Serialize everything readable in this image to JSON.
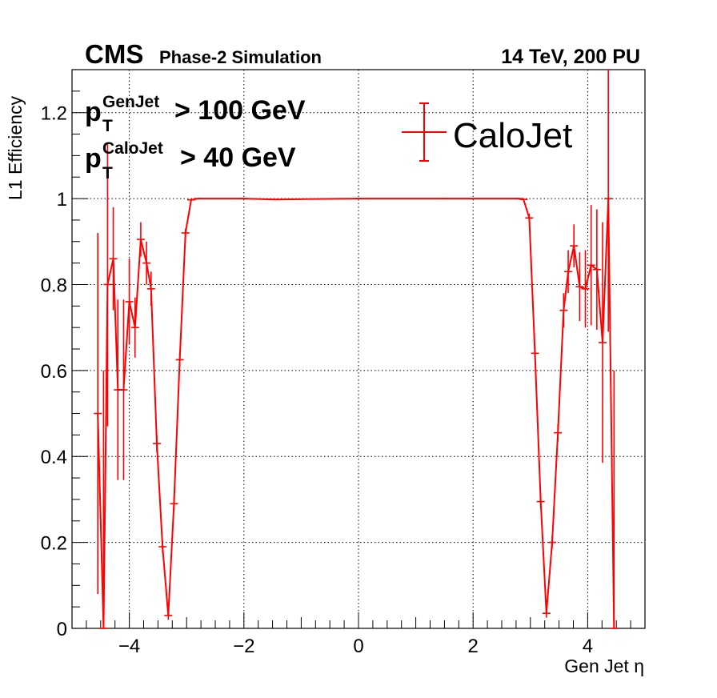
{
  "header": {
    "experiment": "CMS",
    "subtitle": "Phase-2 Simulation",
    "conditions": "14 TeV, 200 PU"
  },
  "cuts": {
    "cut1": {
      "base": "p",
      "sub": "T",
      "sup": "GenJet",
      "rest": "> 100 GeV"
    },
    "cut2": {
      "base": "p",
      "sub": "T",
      "sup": "CaloJet",
      "rest": "> 40 GeV"
    }
  },
  "chart_data": {
    "type": "line",
    "xlabel": "Gen Jet η",
    "ylabel": "L1 Efficiency",
    "xlim": [
      -5,
      5
    ],
    "ylim": [
      0,
      1.3
    ],
    "xticks": [
      -4,
      -2,
      0,
      2,
      4
    ],
    "xtick_labels": [
      "−4",
      "−2",
      "0",
      "2",
      "4"
    ],
    "yticks": [
      0,
      0.2,
      0.4,
      0.6,
      0.8,
      1,
      1.2
    ],
    "ytick_labels": [
      "0",
      "0.2",
      "0.4",
      "0.6",
      "0.8",
      "1",
      "1.2"
    ],
    "grid": true,
    "legend_position": "top-right",
    "series": [
      {
        "name": "CaloJet",
        "color": "#ff0000",
        "points": [
          {
            "x": -4.55,
            "y": 0.5,
            "err": 0.42
          },
          {
            "x": -4.45,
            "y": 0.0,
            "err": 0.6
          },
          {
            "x": -4.38,
            "y": 0.8,
            "err": 0.33
          },
          {
            "x": -4.28,
            "y": 0.86,
            "err": 0.12
          },
          {
            "x": -4.2,
            "y": 0.555,
            "err": 0.21
          },
          {
            "x": -4.1,
            "y": 0.555,
            "err": 0.21
          },
          {
            "x": -4.0,
            "y": 0.76,
            "err": 0.1
          },
          {
            "x": -3.9,
            "y": 0.7,
            "err": 0.07
          },
          {
            "x": -3.8,
            "y": 0.905,
            "err": 0.04
          },
          {
            "x": -3.7,
            "y": 0.85,
            "err": 0.05
          },
          {
            "x": -3.62,
            "y": 0.79,
            "err": 0.04
          },
          {
            "x": -3.52,
            "y": 0.43,
            "err": 0.02
          },
          {
            "x": -3.42,
            "y": 0.19,
            "err": 0.015
          },
          {
            "x": -3.32,
            "y": 0.03,
            "err": 0.01
          },
          {
            "x": -3.22,
            "y": 0.29,
            "err": 0.015
          },
          {
            "x": -3.12,
            "y": 0.625,
            "err": 0.015
          },
          {
            "x": -3.02,
            "y": 0.92,
            "err": 0.01
          },
          {
            "x": -2.92,
            "y": 0.997,
            "err": 0.003
          },
          {
            "x": -2.8,
            "y": 1.0,
            "err": 0.0
          },
          {
            "x": -2.0,
            "y": 1.0,
            "err": 0.0
          },
          {
            "x": -1.45,
            "y": 0.998,
            "err": 0.0
          },
          {
            "x": 0.0,
            "y": 1.0,
            "err": 0.0
          },
          {
            "x": 1.5,
            "y": 1.0,
            "err": 0.0
          },
          {
            "x": 2.8,
            "y": 1.0,
            "err": 0.0
          },
          {
            "x": 2.88,
            "y": 0.998,
            "err": 0.003
          },
          {
            "x": 2.98,
            "y": 0.955,
            "err": 0.01
          },
          {
            "x": 3.08,
            "y": 0.64,
            "err": 0.015
          },
          {
            "x": 3.18,
            "y": 0.295,
            "err": 0.015
          },
          {
            "x": 3.28,
            "y": 0.035,
            "err": 0.01
          },
          {
            "x": 3.38,
            "y": 0.2,
            "err": 0.015
          },
          {
            "x": 3.48,
            "y": 0.455,
            "err": 0.02
          },
          {
            "x": 3.58,
            "y": 0.74,
            "err": 0.04
          },
          {
            "x": 3.66,
            "y": 0.83,
            "err": 0.05
          },
          {
            "x": 3.76,
            "y": 0.89,
            "err": 0.05
          },
          {
            "x": 3.86,
            "y": 0.795,
            "err": 0.08
          },
          {
            "x": 3.96,
            "y": 0.79,
            "err": 0.09
          },
          {
            "x": 4.06,
            "y": 0.845,
            "err": 0.14
          },
          {
            "x": 4.16,
            "y": 0.835,
            "err": 0.14
          },
          {
            "x": 4.26,
            "y": 0.665,
            "err": 0.28
          },
          {
            "x": 4.36,
            "y": 1.0,
            "err": 0.31
          },
          {
            "x": 4.46,
            "y": 0.0,
            "err": 0.6
          }
        ]
      }
    ]
  }
}
